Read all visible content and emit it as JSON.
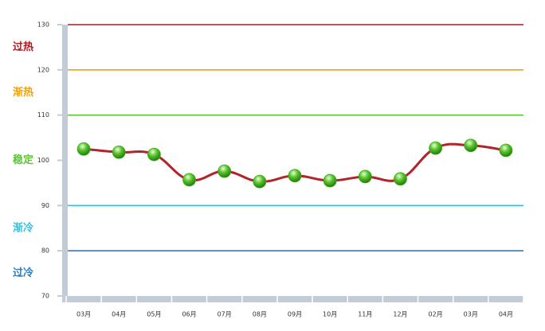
{
  "chart_data": {
    "type": "line",
    "categories": [
      "03月",
      "04月",
      "05月",
      "06月",
      "07月",
      "08月",
      "09月",
      "10月",
      "11月",
      "12月",
      "02月",
      "03月",
      "04月"
    ],
    "series": [
      {
        "color": "#b0242a",
        "marker_color": "#3fae1c",
        "values": [
          102.5,
          101.8,
          101.3,
          95.7,
          97.6,
          95.3,
          96.6,
          95.5,
          96.4,
          95.9,
          102.7,
          103.3,
          102.2
        ]
      }
    ],
    "ylim": [
      70,
      130
    ],
    "yticks": [
      70,
      80,
      90,
      100,
      110,
      120,
      130
    ],
    "reference_lines": [
      {
        "value": 130,
        "color": "#b0191e",
        "label": "过热"
      },
      {
        "value": 120,
        "color": "#f0a30a",
        "label": "渐热"
      },
      {
        "value": 110,
        "color": "#5cc531",
        "label": "稳定"
      },
      {
        "value": 90,
        "color": "#38c1d6",
        "label": "渐冷"
      },
      {
        "value": 80,
        "color": "#2e7bbf",
        "label": "过冷"
      }
    ]
  }
}
